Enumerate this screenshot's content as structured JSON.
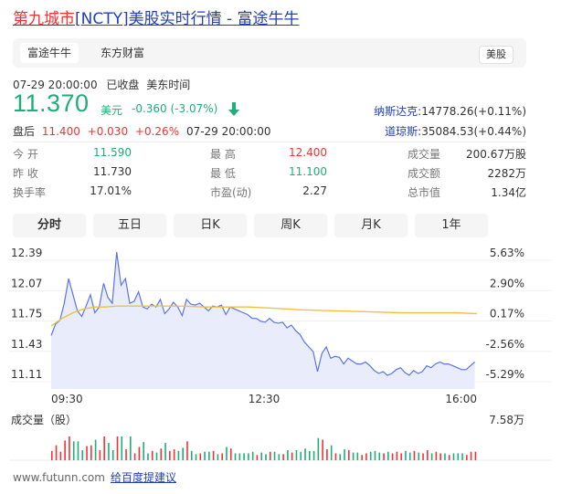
{
  "header": {
    "title_red": "第九城市",
    "title_rest": "[NCTY]美股实时行情 - 富途牛牛"
  },
  "tabs": [
    {
      "label": "富途牛牛",
      "active": true
    },
    {
      "label": "东方财富",
      "active": false
    }
  ],
  "market_badge": "美股",
  "status": {
    "time": "07-29 20:00:00",
    "state": "已收盘",
    "zone": "美东时间"
  },
  "quote": {
    "price": "11.370",
    "currency": "美元",
    "change": "-0.360 (-3.07%)",
    "direction_icon": "down-arrow-icon"
  },
  "indices": [
    {
      "name": "纳斯达克:",
      "value": "14778.26(+0.11%)"
    },
    {
      "name": "道琼斯:",
      "value": "35084.53(+0.44%)"
    }
  ],
  "after_hours": {
    "label": "盘后",
    "price": "11.400",
    "change": "+0.030",
    "pct": "+0.26%",
    "time": "07-29 20:00:00"
  },
  "stats": {
    "col1": [
      {
        "label": "今 开",
        "value": "11.590",
        "color": "#1fad78"
      },
      {
        "label": "昨 收",
        "value": "11.730",
        "color": "#333333"
      },
      {
        "label": "换手率",
        "value": "17.01%",
        "color": "#333333"
      }
    ],
    "col2": [
      {
        "label": "最 高",
        "value": "12.400",
        "color": "#f73131"
      },
      {
        "label": "最 低",
        "value": "11.100",
        "color": "#1fad78"
      },
      {
        "label": "市盈(动)",
        "value": "2.27",
        "color": "#333333"
      }
    ],
    "col3": [
      {
        "label": "成交量",
        "value": "200.67万股",
        "color": "#333333"
      },
      {
        "label": "成交额",
        "value": "2282万",
        "color": "#333333"
      },
      {
        "label": "总市值",
        "value": "1.34亿",
        "color": "#333333"
      }
    ]
  },
  "periods": [
    {
      "label": "分时",
      "active": true
    },
    {
      "label": "五日",
      "active": false
    },
    {
      "label": "日K",
      "active": false
    },
    {
      "label": "周K",
      "active": false
    },
    {
      "label": "月K",
      "active": false
    },
    {
      "label": "1年",
      "active": false
    }
  ],
  "chart_data": {
    "type": "line",
    "y_left_ticks": [
      "12.39",
      "12.07",
      "11.75",
      "11.43",
      "11.11"
    ],
    "y_right_ticks": [
      "5.63%",
      "2.90%",
      "0.17%",
      "-2.56%",
      "-5.29%"
    ],
    "x_ticks": [
      "09:30",
      "12:30",
      "16:00"
    ],
    "ylim": [
      11.11,
      12.39
    ],
    "xlim": [
      0,
      390
    ],
    "series": [
      {
        "color": "#5b74e6",
        "x": [
          0,
          4,
          8,
          12,
          16,
          20,
          24,
          28,
          32,
          36,
          40,
          44,
          48,
          52,
          56,
          60,
          64,
          68,
          72,
          76,
          80,
          84,
          88,
          92,
          96,
          100,
          104,
          108,
          112,
          116,
          120,
          124,
          128,
          132,
          136,
          140,
          144,
          148,
          152,
          156,
          160,
          164,
          168,
          172,
          176,
          180,
          184,
          188,
          192,
          196,
          200,
          204,
          208,
          212,
          216,
          220,
          224,
          228,
          232,
          236,
          240,
          244,
          248,
          252,
          256,
          260,
          264,
          268,
          272,
          276,
          280,
          284,
          288,
          292,
          296,
          300,
          304,
          308,
          312,
          316,
          320,
          324,
          328,
          332,
          336,
          340,
          344,
          348,
          352,
          356,
          360,
          364,
          368,
          372,
          376,
          380,
          384,
          388
        ],
        "values": [
          11.52,
          11.64,
          11.68,
          11.86,
          12.12,
          11.95,
          11.78,
          11.72,
          11.83,
          11.95,
          11.76,
          11.82,
          12.07,
          11.92,
          11.86,
          12.4,
          12.05,
          12.12,
          11.86,
          11.88,
          11.98,
          11.82,
          11.8,
          11.85,
          11.82,
          11.9,
          11.75,
          11.8,
          11.87,
          11.82,
          11.73,
          11.9,
          11.85,
          11.84,
          11.86,
          11.82,
          11.78,
          11.83,
          11.82,
          11.84,
          11.74,
          11.82,
          11.8,
          11.78,
          11.76,
          11.74,
          11.7,
          11.7,
          11.67,
          11.66,
          11.7,
          11.66,
          11.65,
          11.66,
          11.6,
          11.63,
          11.57,
          11.53,
          11.45,
          11.4,
          11.35,
          11.14,
          11.33,
          11.4,
          11.28,
          11.3,
          11.29,
          11.22,
          11.28,
          11.25,
          11.22,
          11.22,
          11.24,
          11.2,
          11.15,
          11.12,
          11.14,
          11.1,
          11.12,
          11.16,
          11.18,
          11.13,
          11.1,
          11.15,
          11.12,
          11.14,
          11.2,
          11.18,
          11.22,
          11.24,
          11.22,
          11.22,
          11.2,
          11.18,
          11.16,
          11.16,
          11.2,
          11.24
        ]
      },
      {
        "color": "#f0c040",
        "x": [
          0,
          10,
          20,
          30,
          40,
          50,
          60,
          80,
          100,
          120,
          140,
          160,
          180,
          200,
          230,
          260,
          290,
          320,
          350,
          370,
          390
        ],
        "values": [
          11.62,
          11.7,
          11.76,
          11.8,
          11.82,
          11.82,
          11.83,
          11.83,
          11.83,
          11.83,
          11.82,
          11.82,
          11.82,
          11.81,
          11.79,
          11.78,
          11.77,
          11.76,
          11.76,
          11.76,
          11.75
        ]
      }
    ],
    "volume": {
      "label": "成交量（股）",
      "max_label": "7.58万"
    }
  },
  "footer": {
    "site": "www.futunn.com",
    "feedback": "给百度提建议"
  }
}
